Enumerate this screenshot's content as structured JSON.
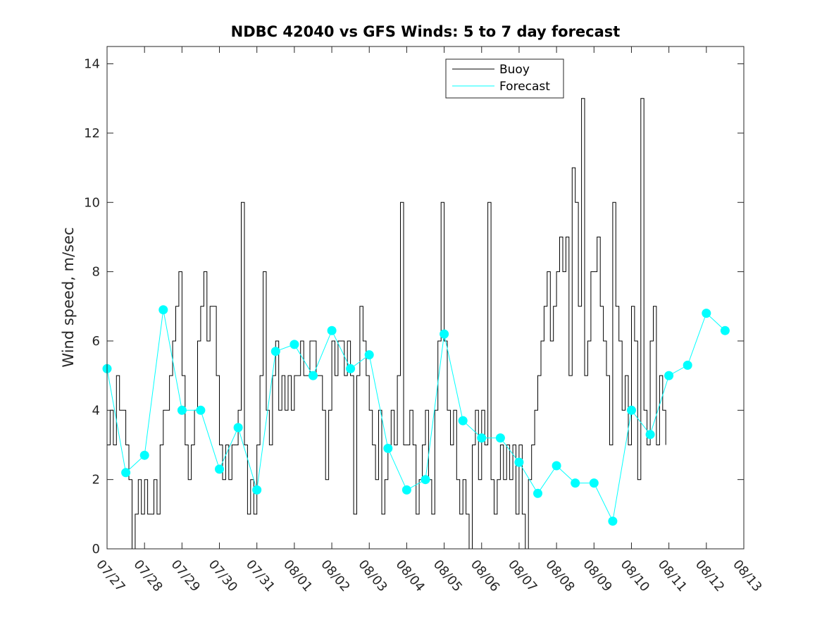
{
  "chart_data": {
    "type": "line",
    "title": "NDBC 42040 vs GFS Winds: 5 to 7 day forecast",
    "xlabel": "",
    "ylabel": "Wind speed, m/sec",
    "xlim": [
      "07/27",
      "08/13"
    ],
    "ylim": [
      0,
      14.5
    ],
    "x_ticks": [
      "07/27",
      "07/28",
      "07/29",
      "07/30",
      "07/31",
      "08/01",
      "08/02",
      "08/03",
      "08/04",
      "08/05",
      "08/06",
      "08/07",
      "08/08",
      "08/09",
      "08/10",
      "08/11",
      "08/12",
      "08/13"
    ],
    "y_ticks": [
      0,
      2,
      4,
      6,
      8,
      10,
      12,
      14
    ],
    "grid": false,
    "legend": {
      "position": "top-center",
      "entries": [
        "Buoy",
        "Forecast"
      ]
    },
    "colors": {
      "buoy": "#000000",
      "forecast": "#00ffff"
    },
    "series": [
      {
        "name": "Buoy",
        "color": "#000000",
        "points": [
          [
            "07/27 00:00",
            3
          ],
          [
            "07/27 02:00",
            4
          ],
          [
            "07/27 04:00",
            3
          ],
          [
            "07/27 06:00",
            5
          ],
          [
            "07/27 08:00",
            4
          ],
          [
            "07/27 10:00",
            4
          ],
          [
            "07/27 12:00",
            3
          ],
          [
            "07/27 14:00",
            2
          ],
          [
            "07/27 16:00",
            0
          ],
          [
            "07/27 18:00",
            1
          ],
          [
            "07/27 20:00",
            2
          ],
          [
            "07/27 22:00",
            1
          ],
          [
            "07/28 00:00",
            2
          ],
          [
            "07/28 02:00",
            1
          ],
          [
            "07/28 04:00",
            1
          ],
          [
            "07/28 06:00",
            2
          ],
          [
            "07/28 08:00",
            1
          ],
          [
            "07/28 10:00",
            3
          ],
          [
            "07/28 12:00",
            4
          ],
          [
            "07/28 14:00",
            4
          ],
          [
            "07/28 16:00",
            5
          ],
          [
            "07/28 18:00",
            6
          ],
          [
            "07/28 20:00",
            7
          ],
          [
            "07/28 22:00",
            8
          ],
          [
            "07/29 00:00",
            5
          ],
          [
            "07/29 02:00",
            3
          ],
          [
            "07/29 04:00",
            2
          ],
          [
            "07/29 06:00",
            3
          ],
          [
            "07/29 08:00",
            4
          ],
          [
            "07/29 10:00",
            6
          ],
          [
            "07/29 12:00",
            7
          ],
          [
            "07/29 14:00",
            8
          ],
          [
            "07/29 16:00",
            6
          ],
          [
            "07/29 18:00",
            7
          ],
          [
            "07/29 20:00",
            7
          ],
          [
            "07/29 22:00",
            5
          ],
          [
            "07/30 00:00",
            3
          ],
          [
            "07/30 02:00",
            2
          ],
          [
            "07/30 04:00",
            3
          ],
          [
            "07/30 06:00",
            2
          ],
          [
            "07/30 08:00",
            3
          ],
          [
            "07/30 10:00",
            3
          ],
          [
            "07/30 12:00",
            4
          ],
          [
            "07/30 14:00",
            10
          ],
          [
            "07/30 16:00",
            3
          ],
          [
            "07/30 18:00",
            1
          ],
          [
            "07/30 20:00",
            2
          ],
          [
            "07/30 22:00",
            1
          ],
          [
            "07/31 00:00",
            3
          ],
          [
            "07/31 02:00",
            5
          ],
          [
            "07/31 04:00",
            8
          ],
          [
            "07/31 06:00",
            4
          ],
          [
            "07/31 08:00",
            3
          ],
          [
            "07/31 10:00",
            5
          ],
          [
            "07/31 12:00",
            6
          ],
          [
            "07/31 14:00",
            4
          ],
          [
            "07/31 16:00",
            5
          ],
          [
            "07/31 18:00",
            4
          ],
          [
            "07/31 20:00",
            5
          ],
          [
            "07/31 22:00",
            4
          ],
          [
            "08/01 00:00",
            5
          ],
          [
            "08/01 02:00",
            5
          ],
          [
            "08/01 04:00",
            6
          ],
          [
            "08/01 06:00",
            5
          ],
          [
            "08/01 08:00",
            5
          ],
          [
            "08/01 10:00",
            6
          ],
          [
            "08/01 12:00",
            6
          ],
          [
            "08/01 14:00",
            5
          ],
          [
            "08/01 16:00",
            5
          ],
          [
            "08/01 18:00",
            4
          ],
          [
            "08/01 20:00",
            2
          ],
          [
            "08/01 22:00",
            4
          ],
          [
            "08/02 00:00",
            6
          ],
          [
            "08/02 02:00",
            5
          ],
          [
            "08/02 04:00",
            6
          ],
          [
            "08/02 06:00",
            6
          ],
          [
            "08/02 08:00",
            5
          ],
          [
            "08/02 10:00",
            6
          ],
          [
            "08/02 12:00",
            5
          ],
          [
            "08/02 14:00",
            1
          ],
          [
            "08/02 16:00",
            5
          ],
          [
            "08/02 18:00",
            7
          ],
          [
            "08/02 20:00",
            6
          ],
          [
            "08/02 22:00",
            5
          ],
          [
            "08/03 00:00",
            4
          ],
          [
            "08/03 02:00",
            3
          ],
          [
            "08/03 04:00",
            2
          ],
          [
            "08/03 06:00",
            4
          ],
          [
            "08/03 08:00",
            1
          ],
          [
            "08/03 10:00",
            2
          ],
          [
            "08/03 12:00",
            3
          ],
          [
            "08/03 14:00",
            4
          ],
          [
            "08/03 16:00",
            3
          ],
          [
            "08/03 18:00",
            5
          ],
          [
            "08/03 20:00",
            10
          ],
          [
            "08/03 22:00",
            3
          ],
          [
            "08/04 00:00",
            3
          ],
          [
            "08/04 02:00",
            4
          ],
          [
            "08/04 04:00",
            3
          ],
          [
            "08/04 06:00",
            1
          ],
          [
            "08/04 08:00",
            2
          ],
          [
            "08/04 10:00",
            3
          ],
          [
            "08/04 12:00",
            4
          ],
          [
            "08/04 14:00",
            2
          ],
          [
            "08/04 16:00",
            1
          ],
          [
            "08/04 18:00",
            4
          ],
          [
            "08/04 20:00",
            6
          ],
          [
            "08/04 22:00",
            10
          ],
          [
            "08/05 00:00",
            6
          ],
          [
            "08/05 02:00",
            4
          ],
          [
            "08/05 04:00",
            3
          ],
          [
            "08/05 06:00",
            4
          ],
          [
            "08/05 08:00",
            2
          ],
          [
            "08/05 10:00",
            1
          ],
          [
            "08/05 12:00",
            2
          ],
          [
            "08/05 14:00",
            1
          ],
          [
            "08/05 16:00",
            0
          ],
          [
            "08/05 18:00",
            3
          ],
          [
            "08/05 20:00",
            4
          ],
          [
            "08/05 22:00",
            2
          ],
          [
            "08/06 00:00",
            4
          ],
          [
            "08/06 02:00",
            3
          ],
          [
            "08/06 04:00",
            10
          ],
          [
            "08/06 06:00",
            2
          ],
          [
            "08/06 08:00",
            1
          ],
          [
            "08/06 10:00",
            2
          ],
          [
            "08/06 12:00",
            3
          ],
          [
            "08/06 14:00",
            2
          ],
          [
            "08/06 16:00",
            3
          ],
          [
            "08/06 18:00",
            2
          ],
          [
            "08/06 20:00",
            3
          ],
          [
            "08/06 22:00",
            1
          ],
          [
            "08/07 00:00",
            3
          ],
          [
            "08/07 02:00",
            1
          ],
          [
            "08/07 04:00",
            0
          ],
          [
            "08/07 06:00",
            2
          ],
          [
            "08/07 08:00",
            3
          ],
          [
            "08/07 10:00",
            4
          ],
          [
            "08/07 12:00",
            5
          ],
          [
            "08/07 14:00",
            6
          ],
          [
            "08/07 16:00",
            7
          ],
          [
            "08/07 18:00",
            8
          ],
          [
            "08/07 20:00",
            6
          ],
          [
            "08/07 22:00",
            7
          ],
          [
            "08/08 00:00",
            8
          ],
          [
            "08/08 02:00",
            9
          ],
          [
            "08/08 04:00",
            8
          ],
          [
            "08/08 06:00",
            9
          ],
          [
            "08/08 08:00",
            5
          ],
          [
            "08/08 10:00",
            11
          ],
          [
            "08/08 12:00",
            10
          ],
          [
            "08/08 14:00",
            7
          ],
          [
            "08/08 16:00",
            13
          ],
          [
            "08/08 18:00",
            5
          ],
          [
            "08/08 20:00",
            6
          ],
          [
            "08/08 22:00",
            8
          ],
          [
            "08/09 00:00",
            8
          ],
          [
            "08/09 02:00",
            9
          ],
          [
            "08/09 04:00",
            7
          ],
          [
            "08/09 06:00",
            6
          ],
          [
            "08/09 08:00",
            5
          ],
          [
            "08/09 10:00",
            3
          ],
          [
            "08/09 12:00",
            10
          ],
          [
            "08/09 14:00",
            7
          ],
          [
            "08/09 16:00",
            6
          ],
          [
            "08/09 18:00",
            4
          ],
          [
            "08/09 20:00",
            5
          ],
          [
            "08/09 22:00",
            3
          ],
          [
            "08/10 00:00",
            7
          ],
          [
            "08/10 02:00",
            6
          ],
          [
            "08/10 04:00",
            2
          ],
          [
            "08/10 06:00",
            13
          ],
          [
            "08/10 08:00",
            4
          ],
          [
            "08/10 10:00",
            3
          ],
          [
            "08/10 12:00",
            6
          ],
          [
            "08/10 14:00",
            7
          ],
          [
            "08/10 16:00",
            3
          ],
          [
            "08/10 18:00",
            5
          ],
          [
            "08/10 20:00",
            4
          ],
          [
            "08/10 22:00",
            3
          ]
        ]
      },
      {
        "name": "Forecast",
        "color": "#00ffff",
        "points": [
          [
            "07/27 00:00",
            5.2
          ],
          [
            "07/27 12:00",
            2.2
          ],
          [
            "07/28 00:00",
            2.7
          ],
          [
            "07/28 12:00",
            6.9
          ],
          [
            "07/29 00:00",
            4.0
          ],
          [
            "07/29 12:00",
            4.0
          ],
          [
            "07/30 00:00",
            2.3
          ],
          [
            "07/30 12:00",
            3.5
          ],
          [
            "07/31 00:00",
            1.7
          ],
          [
            "07/31 12:00",
            5.7
          ],
          [
            "08/01 00:00",
            5.9
          ],
          [
            "08/01 12:00",
            5.0
          ],
          [
            "08/02 00:00",
            6.3
          ],
          [
            "08/02 12:00",
            5.2
          ],
          [
            "08/03 00:00",
            5.6
          ],
          [
            "08/03 12:00",
            2.9
          ],
          [
            "08/04 00:00",
            1.7
          ],
          [
            "08/04 12:00",
            2.0
          ],
          [
            "08/05 00:00",
            6.2
          ],
          [
            "08/05 12:00",
            3.7
          ],
          [
            "08/06 00:00",
            3.2
          ],
          [
            "08/06 12:00",
            3.2
          ],
          [
            "08/07 00:00",
            2.5
          ],
          [
            "08/07 12:00",
            1.6
          ],
          [
            "08/08 00:00",
            2.4
          ],
          [
            "08/08 12:00",
            1.9
          ],
          [
            "08/09 00:00",
            1.9
          ],
          [
            "08/09 12:00",
            0.8
          ],
          [
            "08/10 00:00",
            4.0
          ],
          [
            "08/10 12:00",
            3.3
          ],
          [
            "08/11 00:00",
            5.0
          ],
          [
            "08/11 12:00",
            5.3
          ],
          [
            "08/12 00:00",
            6.8
          ],
          [
            "08/12 12:00",
            6.3
          ]
        ]
      }
    ]
  }
}
